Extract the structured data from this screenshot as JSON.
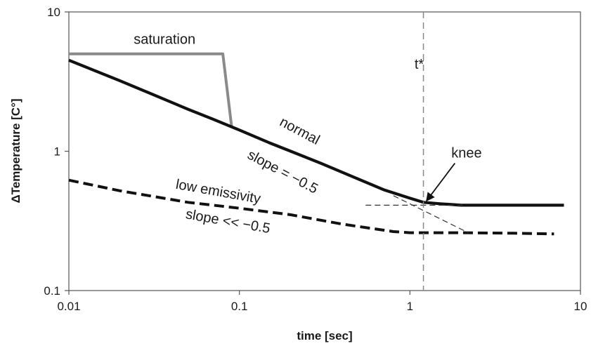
{
  "chart_data": {
    "type": "line",
    "x_scale": "log",
    "y_scale": "log",
    "xlim": [
      0.01,
      10
    ],
    "ylim": [
      0.1,
      10
    ],
    "xlabel": "time [sec]",
    "ylabel": "ΔTemperature [C°]",
    "x_ticks": [
      "0.01",
      "0.1",
      "1",
      "10"
    ],
    "y_ticks": [
      "0.1",
      "1",
      "10"
    ],
    "grid": false,
    "series": [
      {
        "name": "saturation",
        "color": "#8a8a8a",
        "style": "solid",
        "x": [
          0.01,
          0.08,
          0.09
        ],
        "y": [
          5.0,
          5.0,
          1.5
        ]
      },
      {
        "name": "normal",
        "color": "#111111",
        "style": "solid",
        "x": [
          0.01,
          0.02,
          0.03,
          0.05,
          0.07,
          0.1,
          0.15,
          0.2,
          0.3,
          0.5,
          0.7,
          1.0,
          1.2,
          1.5,
          2.0,
          3.0,
          5.0,
          8.0
        ],
        "y": [
          4.5,
          3.2,
          2.6,
          2.0,
          1.7,
          1.42,
          1.15,
          1.0,
          0.82,
          0.63,
          0.53,
          0.46,
          0.43,
          0.42,
          0.41,
          0.41,
          0.41,
          0.41
        ]
      },
      {
        "name": "low emissivity",
        "color": "#111111",
        "style": "dashed",
        "x": [
          0.01,
          0.02,
          0.05,
          0.1,
          0.2,
          0.4,
          0.8,
          1.0,
          2.0,
          4.0,
          7.0
        ],
        "y": [
          0.62,
          0.52,
          0.43,
          0.39,
          0.35,
          0.3,
          0.265,
          0.26,
          0.26,
          0.258,
          0.255
        ]
      },
      {
        "name": "",
        "color": "#333333",
        "style": "thin-dashed",
        "x": [
          0.55,
          2.1
        ],
        "y": [
          0.41,
          0.41
        ]
      },
      {
        "name": "",
        "color": "#333333",
        "style": "thin-dashed",
        "x": [
          0.8,
          2.2
        ],
        "y": [
          0.48,
          0.26
        ]
      }
    ],
    "vline": {
      "x": 1.2,
      "label": "t*",
      "style": "gray-dashed",
      "color": "#888888"
    },
    "annotations": [
      {
        "text": "saturation",
        "x": 0.024,
        "y": 5.9,
        "rotation": 0
      },
      {
        "text": "normal",
        "x": 0.17,
        "y": 1.55,
        "rotation": 28
      },
      {
        "text": "slope = −0.5",
        "x": 0.11,
        "y": 0.9,
        "rotation": 28
      },
      {
        "text": "low emissivity",
        "x": 0.042,
        "y": 0.54,
        "rotation": 10
      },
      {
        "text": "slope << −0.5",
        "x": 0.048,
        "y": 0.33,
        "rotation": 10
      },
      {
        "text": "knee",
        "x": 1.75,
        "y": 0.9,
        "rotation": 0,
        "arrow_to": [
          1.25,
          0.44
        ]
      }
    ]
  }
}
